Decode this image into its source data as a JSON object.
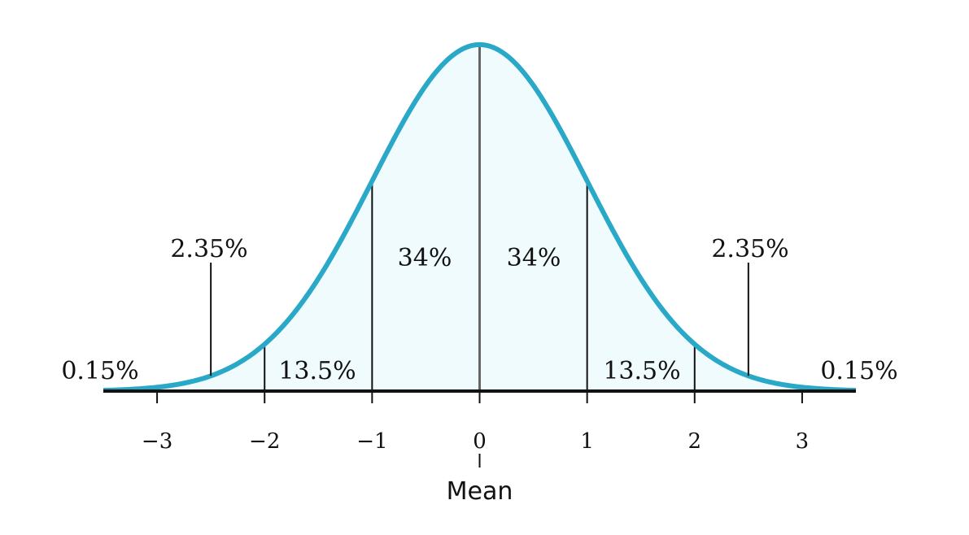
{
  "chart_data": {
    "type": "normal",
    "values": [
      0.15,
      2.35,
      13.5,
      34,
      34,
      13.5,
      2.35,
      0.15
    ],
    "value_labels": [
      "0.15%",
      "2.35%",
      "13.5%",
      "34%",
      "34%",
      "13.5%",
      "2.35%",
      "0.15%"
    ],
    "xlim": [
      -3.5,
      3.5
    ],
    "xticks": [
      {
        "value": -3,
        "label": "−3"
      },
      {
        "value": -2,
        "label": "−2"
      },
      {
        "value": -1,
        "label": "−1"
      },
      0,
      1,
      2,
      3
    ],
    "xlabel": "Mean",
    "line_color": "#2aa8c8",
    "fill_color": "#effbfd"
  }
}
